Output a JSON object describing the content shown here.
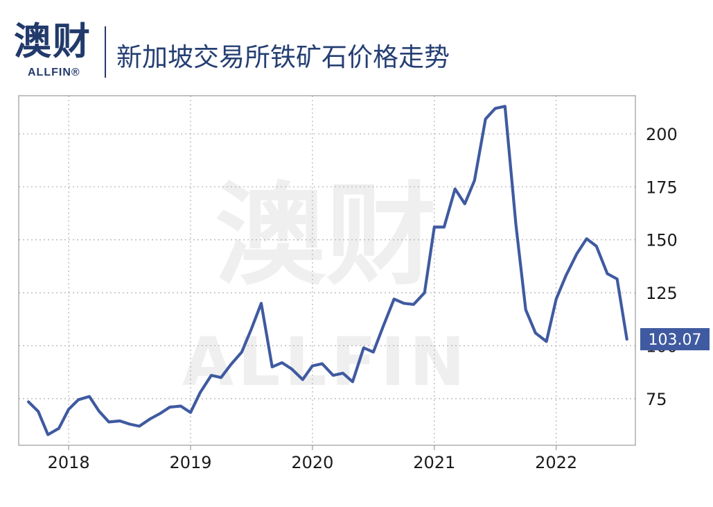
{
  "header": {
    "logo_text": "澳财",
    "logo_sub": "ALLFIN®",
    "title": "新加坡交易所铁矿石价格走势"
  },
  "watermark": {
    "main": "澳财",
    "sub": "ALLFIN"
  },
  "colors": {
    "line": "#3f5aa0",
    "brand": "#223a6b",
    "grid": "#b8b8b8"
  },
  "chart_data": {
    "type": "line",
    "title": "新加坡交易所铁矿石价格走势",
    "xlabel": "",
    "ylabel": "",
    "x_ticks": [
      "2018",
      "2019",
      "2020",
      "2021",
      "2022"
    ],
    "y_ticks": [
      75,
      100,
      125,
      150,
      175,
      200
    ],
    "ylim": [
      53,
      218
    ],
    "xlim": [
      2017.59,
      2022.65
    ],
    "grid": true,
    "y_axis_position": "right",
    "last_value_label": "103.07",
    "series": [
      {
        "x": [
          2017.67,
          2017.75,
          2017.83,
          2017.92,
          2018.0,
          2018.08,
          2018.17,
          2018.25,
          2018.33,
          2018.42,
          2018.5,
          2018.58,
          2018.67,
          2018.75,
          2018.83,
          2018.92,
          2019.0,
          2019.08,
          2019.17,
          2019.25,
          2019.33,
          2019.42,
          2019.5,
          2019.58,
          2019.67,
          2019.75,
          2019.83,
          2019.92,
          2020.0,
          2020.08,
          2020.17,
          2020.25,
          2020.33,
          2020.42,
          2020.5,
          2020.58,
          2020.67,
          2020.75,
          2020.83,
          2020.92,
          2021.0,
          2021.08,
          2021.17,
          2021.25,
          2021.33,
          2021.42,
          2021.5,
          2021.58,
          2021.67,
          2021.75,
          2021.83,
          2021.92,
          2022.0,
          2022.08,
          2022.17,
          2022.25,
          2022.33,
          2022.42,
          2022.5,
          2022.58
        ],
        "values": [
          73.5,
          69,
          58,
          61,
          70,
          74.5,
          76,
          69,
          64,
          64.5,
          63,
          62,
          65.5,
          68,
          71,
          71.5,
          68.5,
          78,
          86,
          85,
          91,
          97,
          108,
          120,
          90,
          92,
          89,
          84,
          90.5,
          91.5,
          86,
          87,
          83,
          99,
          97,
          109,
          122,
          120,
          119.5,
          125,
          156,
          156,
          174,
          167,
          178,
          207,
          212,
          213,
          157,
          117,
          106,
          102,
          122,
          133,
          143.5,
          150.5,
          147,
          134,
          131.5,
          103.07
        ]
      }
    ]
  }
}
